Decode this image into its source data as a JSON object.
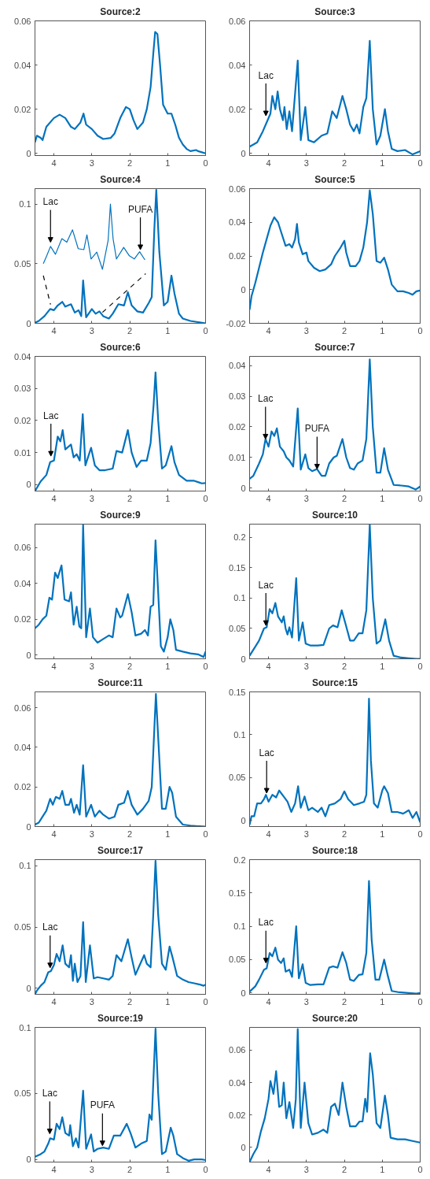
{
  "chart_data": [
    {
      "type": "line",
      "title": "Source:2",
      "xlim": [
        4.5,
        0
      ],
      "xticks": [
        4,
        3,
        2,
        1,
        0
      ],
      "ylim": [
        -0.001,
        0.06
      ],
      "yticks": [
        0,
        0.02,
        0.04,
        0.06
      ],
      "grid": false,
      "series": [
        {
          "color": "#0072bd",
          "x": [
            4.5,
            4.45,
            4.35,
            4.3,
            4.2,
            4.0,
            3.85,
            3.7,
            3.55,
            3.45,
            3.3,
            3.22,
            3.15,
            3.0,
            2.85,
            2.7,
            2.5,
            2.4,
            2.25,
            2.1,
            2.0,
            1.9,
            1.8,
            1.65,
            1.55,
            1.45,
            1.38,
            1.33,
            1.27,
            1.2,
            1.12,
            1.0,
            0.9,
            0.8,
            0.7,
            0.6,
            0.5,
            0.4,
            0.25,
            0.2,
            0
          ],
          "values": [
            0.005,
            0.008,
            0.007,
            0.006,
            0.012,
            0.016,
            0.0175,
            0.016,
            0.012,
            0.011,
            0.014,
            0.018,
            0.013,
            0.011,
            0.008,
            0.0065,
            0.007,
            0.009,
            0.016,
            0.021,
            0.02,
            0.015,
            0.011,
            0.014,
            0.02,
            0.03,
            0.045,
            0.055,
            0.054,
            0.04,
            0.022,
            0.018,
            0.018,
            0.013,
            0.007,
            0.004,
            0.002,
            0.001,
            0.0015,
            0.001,
            0
          ]
        }
      ]
    },
    {
      "type": "line",
      "title": "Source:3",
      "xlim": [
        4.5,
        0
      ],
      "xticks": [
        4,
        3,
        2,
        1,
        0
      ],
      "ylim": [
        -0.001,
        0.06
      ],
      "yticks": [
        0,
        0.02,
        0.04,
        0.06
      ],
      "grid": false,
      "annotations": [
        {
          "text": "Lac",
          "x": 4.07,
          "y": 0.017
        }
      ],
      "series": [
        {
          "color": "#0072bd",
          "x": [
            4.5,
            4.3,
            4.15,
            4.05,
            3.95,
            3.9,
            3.82,
            3.76,
            3.7,
            3.62,
            3.58,
            3.52,
            3.45,
            3.38,
            3.23,
            3.15,
            3.03,
            2.95,
            2.8,
            2.6,
            2.45,
            2.32,
            2.2,
            2.05,
            1.95,
            1.85,
            1.75,
            1.67,
            1.6,
            1.5,
            1.42,
            1.33,
            1.25,
            1.15,
            1.05,
            0.93,
            0.85,
            0.75,
            0.6,
            0.4,
            0.2,
            0
          ],
          "values": [
            0.003,
            0.005,
            0.01,
            0.014,
            0.018,
            0.026,
            0.02,
            0.028,
            0.02,
            0.015,
            0.021,
            0.011,
            0.019,
            0.01,
            0.042,
            0.006,
            0.021,
            0.006,
            0.005,
            0.008,
            0.009,
            0.019,
            0.016,
            0.026,
            0.02,
            0.013,
            0.01,
            0.013,
            0.009,
            0.021,
            0.025,
            0.051,
            0.02,
            0.004,
            0.008,
            0.02,
            0.01,
            0.002,
            0.001,
            0.0015,
            -0.0005,
            0.001
          ]
        }
      ]
    },
    {
      "type": "line",
      "title": "Source:4",
      "xlim": [
        4.5,
        0
      ],
      "xticks": [
        4,
        3,
        2,
        1,
        0
      ],
      "ylim": [
        0,
        0.113
      ],
      "yticks": [
        0,
        0.05,
        0.1
      ],
      "grid": false,
      "annotations": [
        {
          "text": "Lac",
          "x": 4.09,
          "y": 0.068
        },
        {
          "text": "PUFA",
          "x": 1.72,
          "y": 0.0618
        }
      ],
      "series": [
        {
          "color": "#0072bd",
          "x": [
            4.5,
            4.4,
            4.25,
            4.1,
            4.0,
            3.9,
            3.78,
            3.7,
            3.55,
            3.45,
            3.35,
            3.28,
            3.23,
            3.15,
            3.0,
            2.9,
            2.8,
            2.7,
            2.55,
            2.45,
            2.3,
            2.15,
            2.05,
            1.95,
            1.8,
            1.65,
            1.5,
            1.42,
            1.35,
            1.3,
            1.22,
            1.1,
            1.0,
            0.9,
            0.82,
            0.7,
            0.6,
            0.4,
            0.2,
            0
          ],
          "values": [
            0.0005,
            0.002,
            0.006,
            0.012,
            0.011,
            0.015,
            0.018,
            0.014,
            0.016,
            0.009,
            0.011,
            0.006,
            0.036,
            0.005,
            0.012,
            0.008,
            0.01,
            0.006,
            0.004,
            0.008,
            0.016,
            0.015,
            0.026,
            0.015,
            0.01,
            0.009,
            0.017,
            0.022,
            0.08,
            0.112,
            0.06,
            0.015,
            0.018,
            0.04,
            0.025,
            0.008,
            0.004,
            0.002,
            0.001,
            0
          ]
        },
        {
          "color": "#0072bd",
          "x": [
            4.28,
            4.19,
            4.09,
            3.96,
            3.79,
            3.66,
            3.51,
            3.36,
            3.21,
            3.13,
            3.02,
            2.87,
            2.72,
            2.57,
            2.51,
            2.44,
            2.35,
            2.16,
            2.01,
            1.88,
            1.74,
            1.6
          ],
          "values": [
            0.05,
            0.0566,
            0.0645,
            0.0579,
            0.071,
            0.068,
            0.0784,
            0.0626,
            0.0618,
            0.0742,
            0.054,
            0.0597,
            0.0453,
            0.0697,
            0.1,
            0.071,
            0.054,
            0.0637,
            0.0566,
            0.054,
            0.06,
            0.0532
          ]
        },
        {
          "color": "#000000",
          "line_style": "dashed",
          "x": [
            4.28,
            4.09
          ],
          "values": [
            0.04,
            0.0158
          ]
        },
        {
          "color": "#000000",
          "line_style": "dashed",
          "x": [
            2.72,
            1.58
          ],
          "values": [
            0.0092,
            0.0416
          ]
        }
      ]
    },
    {
      "type": "line",
      "title": "Source:5",
      "xlim": [
        4.5,
        0
      ],
      "xticks": [
        4,
        3,
        2,
        1,
        0
      ],
      "ylim": [
        -0.02,
        0.06
      ],
      "yticks": [
        -0.02,
        0,
        0.02,
        0.04,
        0.06
      ],
      "grid": false,
      "series": [
        {
          "color": "#0072bd",
          "x": [
            4.5,
            4.45,
            4.35,
            4.25,
            4.15,
            4.05,
            3.95,
            3.85,
            3.75,
            3.65,
            3.55,
            3.45,
            3.38,
            3.3,
            3.25,
            3.2,
            3.1,
            3.0,
            2.95,
            2.8,
            2.65,
            2.5,
            2.35,
            2.25,
            2.1,
            2.0,
            1.95,
            1.85,
            1.7,
            1.6,
            1.5,
            1.4,
            1.33,
            1.25,
            1.15,
            1.05,
            0.95,
            0.85,
            0.75,
            0.6,
            0.45,
            0.3,
            0.2,
            0.1,
            0
          ],
          "values": [
            -0.012,
            -0.004,
            0.004,
            0.013,
            0.022,
            0.03,
            0.038,
            0.043,
            0.04,
            0.033,
            0.026,
            0.027,
            0.025,
            0.03,
            0.039,
            0.028,
            0.021,
            0.022,
            0.017,
            0.013,
            0.011,
            0.012,
            0.015,
            0.02,
            0.025,
            0.029,
            0.022,
            0.014,
            0.014,
            0.017,
            0.025,
            0.04,
            0.059,
            0.045,
            0.017,
            0.016,
            0.019,
            0.012,
            0.003,
            -0.001,
            -0.001,
            -0.002,
            -0.003,
            -0.001,
            -0.0005
          ]
        }
      ]
    },
    {
      "type": "line",
      "title": "Source:6",
      "xlim": [
        4.5,
        0
      ],
      "xticks": [
        4,
        3,
        2,
        1,
        0
      ],
      "ylim": [
        -0.002,
        0.04
      ],
      "yticks": [
        0,
        0.01,
        0.02,
        0.03,
        0.04
      ],
      "grid": false,
      "annotations": [
        {
          "text": "Lac",
          "x": 4.08,
          "y": 0.0089
        }
      ],
      "series": [
        {
          "color": "#0072bd",
          "x": [
            4.5,
            4.35,
            4.2,
            4.1,
            4.0,
            3.9,
            3.83,
            3.77,
            3.7,
            3.55,
            3.48,
            3.4,
            3.32,
            3.24,
            3.17,
            3.02,
            2.92,
            2.8,
            2.65,
            2.45,
            2.35,
            2.2,
            2.05,
            1.95,
            1.82,
            1.7,
            1.55,
            1.45,
            1.37,
            1.32,
            1.25,
            1.15,
            1.05,
            0.9,
            0.82,
            0.7,
            0.5,
            0.3,
            0.1,
            0
          ],
          "values": [
            -0.002,
            0.001,
            0.003,
            0.007,
            0.0075,
            0.015,
            0.0135,
            0.017,
            0.011,
            0.0125,
            0.0085,
            0.0095,
            0.0075,
            0.022,
            0.006,
            0.0115,
            0.006,
            0.0045,
            0.0045,
            0.005,
            0.0105,
            0.01,
            0.017,
            0.01,
            0.0055,
            0.0075,
            0.0075,
            0.013,
            0.025,
            0.035,
            0.02,
            0.005,
            0.006,
            0.012,
            0.007,
            0.003,
            0.0012,
            0.0012,
            0.0004,
            0.0005
          ]
        }
      ]
    },
    {
      "type": "line",
      "title": "Source:7",
      "xlim": [
        4.5,
        0
      ],
      "xticks": [
        4,
        3,
        2,
        1,
        0
      ],
      "ylim": [
        -0.001,
        0.043
      ],
      "yticks": [
        0,
        0.01,
        0.02,
        0.03,
        0.04
      ],
      "grid": false,
      "annotations": [
        {
          "text": "Lac",
          "x": 4.08,
          "y": 0.016
        },
        {
          "text": "PUFA",
          "x": 2.72,
          "y": 0.0062
        }
      ],
      "series": [
        {
          "color": "#0072bd",
          "x": [
            4.5,
            4.4,
            4.25,
            4.15,
            4.08,
            4.0,
            3.92,
            3.85,
            3.78,
            3.7,
            3.6,
            3.53,
            3.45,
            3.35,
            3.23,
            3.15,
            3.03,
            2.95,
            2.85,
            2.72,
            2.6,
            2.5,
            2.4,
            2.28,
            2.2,
            2.05,
            1.95,
            1.85,
            1.75,
            1.65,
            1.52,
            1.42,
            1.33,
            1.25,
            1.15,
            1.05,
            0.95,
            0.85,
            0.7,
            0.5,
            0.3,
            0.12,
            0
          ],
          "values": [
            0.003,
            0.004,
            0.008,
            0.011,
            0.016,
            0.0135,
            0.0185,
            0.017,
            0.0195,
            0.0135,
            0.012,
            0.01,
            0.009,
            0.007,
            0.026,
            0.006,
            0.011,
            0.0065,
            0.0055,
            0.0062,
            0.004,
            0.004,
            0.008,
            0.01,
            0.0105,
            0.016,
            0.01,
            0.0065,
            0.006,
            0.008,
            0.009,
            0.016,
            0.042,
            0.02,
            0.005,
            0.005,
            0.013,
            0.006,
            0.001,
            0.0008,
            0.0005,
            -0.0005,
            0.0005
          ]
        }
      ]
    },
    {
      "type": "line",
      "title": "Source:9",
      "xlim": [
        4.5,
        0
      ],
      "xticks": [
        4,
        3,
        2,
        1,
        0
      ],
      "ylim": [
        -0.002,
        0.073
      ],
      "yticks": [
        0,
        0.02,
        0.04,
        0.06
      ],
      "grid": false,
      "series": [
        {
          "color": "#0072bd",
          "x": [
            4.5,
            4.4,
            4.3,
            4.2,
            4.12,
            4.05,
            3.97,
            3.9,
            3.8,
            3.72,
            3.6,
            3.55,
            3.48,
            3.4,
            3.33,
            3.28,
            3.23,
            3.15,
            3.05,
            2.97,
            2.85,
            2.7,
            2.55,
            2.45,
            2.35,
            2.25,
            2.2,
            2.05,
            1.95,
            1.85,
            1.7,
            1.6,
            1.52,
            1.45,
            1.38,
            1.32,
            1.25,
            1.18,
            1.1,
            1.0,
            0.93,
            0.85,
            0.78,
            0.6,
            0.4,
            0.2,
            0.05,
            0
          ],
          "values": [
            0.015,
            0.017,
            0.02,
            0.022,
            0.032,
            0.031,
            0.046,
            0.043,
            0.05,
            0.031,
            0.03,
            0.035,
            0.017,
            0.027,
            0.016,
            0.015,
            0.0725,
            0.01,
            0.026,
            0.01,
            0.007,
            0.009,
            0.011,
            0.01,
            0.026,
            0.021,
            0.022,
            0.034,
            0.024,
            0.011,
            0.012,
            0.014,
            0.011,
            0.027,
            0.028,
            0.064,
            0.035,
            0.005,
            0.002,
            0.01,
            0.02,
            0.014,
            0.003,
            0.002,
            0.001,
            0.0005,
            -0.001,
            0.002
          ]
        }
      ]
    },
    {
      "type": "line",
      "title": "Source:10",
      "xlim": [
        4.5,
        0
      ],
      "xticks": [
        4,
        3,
        2,
        1,
        0
      ],
      "ylim": [
        0,
        0.222
      ],
      "yticks": [
        0,
        0.05,
        0.1,
        0.15,
        0.2
      ],
      "grid": false,
      "annotations": [
        {
          "text": "Lac",
          "x": 4.07,
          "y": 0.055
        }
      ],
      "series": [
        {
          "color": "#0072bd",
          "x": [
            4.5,
            4.35,
            4.25,
            4.12,
            4.05,
            3.97,
            3.9,
            3.82,
            3.75,
            3.65,
            3.6,
            3.55,
            3.5,
            3.45,
            3.38,
            3.27,
            3.2,
            3.1,
            3.02,
            2.9,
            2.7,
            2.55,
            2.4,
            2.3,
            2.18,
            2.07,
            1.98,
            1.85,
            1.75,
            1.62,
            1.52,
            1.42,
            1.33,
            1.25,
            1.15,
            1.05,
            0.92,
            0.82,
            0.7,
            0.5,
            0.3,
            0.1,
            0
          ],
          "values": [
            0.005,
            0.02,
            0.03,
            0.05,
            0.052,
            0.082,
            0.075,
            0.092,
            0.07,
            0.06,
            0.07,
            0.05,
            0.04,
            0.052,
            0.035,
            0.133,
            0.03,
            0.06,
            0.025,
            0.022,
            0.022,
            0.023,
            0.05,
            0.055,
            0.052,
            0.08,
            0.06,
            0.03,
            0.03,
            0.042,
            0.042,
            0.08,
            0.221,
            0.1,
            0.025,
            0.03,
            0.065,
            0.03,
            0.005,
            0.002,
            0.001,
            0,
            0
          ]
        }
      ]
    },
    {
      "type": "line",
      "title": "Source:11",
      "xlim": [
        4.5,
        0
      ],
      "xticks": [
        4,
        3,
        2,
        1,
        0
      ],
      "ylim": [
        0,
        0.068
      ],
      "yticks": [
        0,
        0.02,
        0.04,
        0.06
      ],
      "grid": false,
      "series": [
        {
          "color": "#0072bd",
          "x": [
            4.5,
            4.4,
            4.3,
            4.2,
            4.1,
            4.03,
            3.95,
            3.85,
            3.78,
            3.7,
            3.6,
            3.55,
            3.47,
            3.4,
            3.32,
            3.23,
            3.15,
            3.02,
            2.92,
            2.8,
            2.7,
            2.55,
            2.4,
            2.3,
            2.15,
            2.05,
            1.95,
            1.8,
            1.65,
            1.5,
            1.42,
            1.35,
            1.31,
            1.25,
            1.15,
            1.05,
            0.95,
            0.88,
            0.78,
            0.6,
            0.4,
            0.2,
            0
          ],
          "values": [
            0.001,
            0.002,
            0.005,
            0.008,
            0.014,
            0.011,
            0.015,
            0.014,
            0.018,
            0.011,
            0.011,
            0.014,
            0.007,
            0.011,
            0.006,
            0.031,
            0.005,
            0.011,
            0.005,
            0.008,
            0.006,
            0.004,
            0.005,
            0.011,
            0.012,
            0.018,
            0.011,
            0.006,
            0.009,
            0.013,
            0.02,
            0.05,
            0.067,
            0.045,
            0.009,
            0.009,
            0.02,
            0.017,
            0.005,
            0.001,
            0.0005,
            0.0002,
            0
          ]
        }
      ]
    },
    {
      "type": "line",
      "title": "Source:15",
      "xlim": [
        4.5,
        0
      ],
      "xticks": [
        4,
        3,
        2,
        1,
        0
      ],
      "ylim": [
        -0.007,
        0.15
      ],
      "yticks": [
        0,
        0.05,
        0.1,
        0.15
      ],
      "grid": false,
      "annotations": [
        {
          "text": "Lac",
          "x": 4.05,
          "y": 0.032
        }
      ],
      "series": [
        {
          "color": "#0072bd",
          "x": [
            4.5,
            4.45,
            4.38,
            4.3,
            4.2,
            4.12,
            4.07,
            4.0,
            3.9,
            3.8,
            3.72,
            3.6,
            3.5,
            3.4,
            3.3,
            3.22,
            3.15,
            3.05,
            2.95,
            2.85,
            2.7,
            2.6,
            2.5,
            2.4,
            2.25,
            2.1,
            2.0,
            1.9,
            1.75,
            1.6,
            1.48,
            1.42,
            1.38,
            1.35,
            1.3,
            1.22,
            1.12,
            1.0,
            0.95,
            0.85,
            0.75,
            0.6,
            0.45,
            0.3,
            0.2,
            0.1,
            0
          ],
          "values": [
            -0.005,
            0.005,
            0.005,
            0.02,
            0.02,
            0.025,
            0.03,
            0.022,
            0.03,
            0.027,
            0.035,
            0.028,
            0.022,
            0.01,
            0.02,
            0.04,
            0.015,
            0.028,
            0.012,
            0.015,
            0.01,
            0.015,
            0.005,
            0.018,
            0.02,
            0.025,
            0.034,
            0.025,
            0.018,
            0.02,
            0.022,
            0.03,
            0.09,
            0.142,
            0.07,
            0.02,
            0.015,
            0.035,
            0.04,
            0.032,
            0.01,
            0.01,
            0.008,
            0.012,
            0.003,
            0.01,
            -0.002
          ]
        }
      ]
    },
    {
      "type": "line",
      "title": "Source:17",
      "xlim": [
        4.5,
        0
      ],
      "xticks": [
        4,
        3,
        2,
        1,
        0
      ],
      "ylim": [
        -0.005,
        0.105
      ],
      "yticks": [
        0,
        0.05,
        0.1
      ],
      "grid": false,
      "annotations": [
        {
          "text": "Lac",
          "x": 4.1,
          "y": 0.0167
        }
      ],
      "series": [
        {
          "color": "#0072bd",
          "x": [
            4.5,
            4.45,
            4.35,
            4.25,
            4.15,
            4.08,
            4.0,
            3.93,
            3.85,
            3.77,
            3.7,
            3.6,
            3.55,
            3.5,
            3.45,
            3.38,
            3.3,
            3.23,
            3.16,
            3.05,
            2.95,
            2.85,
            2.7,
            2.55,
            2.45,
            2.35,
            2.22,
            2.05,
            1.95,
            1.85,
            1.75,
            1.62,
            1.55,
            1.45,
            1.38,
            1.32,
            1.25,
            1.15,
            1.05,
            0.95,
            0.87,
            0.75,
            0.6,
            0.45,
            0.3,
            0.15,
            0.05,
            0
          ],
          "values": [
            -0.005,
            -0.002,
            0.002,
            0.005,
            0.013,
            0.014,
            0.019,
            0.028,
            0.022,
            0.035,
            0.02,
            0.017,
            0.027,
            0.006,
            0.02,
            0.005,
            0.01,
            0.054,
            0.005,
            0.035,
            0.008,
            0.009,
            0.008,
            0.007,
            0.01,
            0.027,
            0.022,
            0.04,
            0.025,
            0.011,
            0.018,
            0.027,
            0.02,
            0.017,
            0.06,
            0.104,
            0.06,
            0.02,
            0.015,
            0.034,
            0.025,
            0.01,
            0.007,
            0.005,
            0.004,
            0.003,
            0.002,
            0.003
          ]
        }
      ]
    },
    {
      "type": "line",
      "title": "Source:18",
      "xlim": [
        4.5,
        0
      ],
      "xticks": [
        4,
        3,
        2,
        1,
        0
      ],
      "ylim": [
        -0.002,
        0.2
      ],
      "yticks": [
        0,
        0.05,
        0.1,
        0.15,
        0.2
      ],
      "grid": false,
      "annotations": [
        {
          "text": "Lac",
          "x": 4.07,
          "y": 0.045
        }
      ],
      "series": [
        {
          "color": "#0072bd",
          "x": [
            4.5,
            4.35,
            4.25,
            4.12,
            4.05,
            3.97,
            3.9,
            3.82,
            3.75,
            3.67,
            3.6,
            3.55,
            3.45,
            3.38,
            3.27,
            3.2,
            3.1,
            3.02,
            2.9,
            2.7,
            2.55,
            2.4,
            2.3,
            2.18,
            2.05,
            1.95,
            1.85,
            1.75,
            1.62,
            1.52,
            1.42,
            1.35,
            1.28,
            1.18,
            1.08,
            0.95,
            0.85,
            0.75,
            0.55,
            0.3,
            0.1,
            0
          ],
          "values": [
            0.002,
            0.01,
            0.02,
            0.035,
            0.037,
            0.06,
            0.055,
            0.068,
            0.05,
            0.045,
            0.052,
            0.032,
            0.035,
            0.024,
            0.1,
            0.022,
            0.043,
            0.015,
            0.012,
            0.013,
            0.013,
            0.038,
            0.04,
            0.038,
            0.061,
            0.045,
            0.02,
            0.018,
            0.027,
            0.028,
            0.06,
            0.168,
            0.08,
            0.02,
            0.02,
            0.05,
            0.025,
            0.003,
            0.001,
            0,
            -0.001,
            0
          ]
        }
      ]
    },
    {
      "type": "line",
      "title": "Source:19",
      "xlim": [
        4.5,
        0
      ],
      "xticks": [
        4,
        3,
        2,
        1,
        0
      ],
      "ylim": [
        -0.002,
        0.1
      ],
      "yticks": [
        0,
        0.05,
        0.1
      ],
      "grid": false,
      "annotations": [
        {
          "text": "Lac",
          "x": 4.11,
          "y": 0.0194
        },
        {
          "text": "PUFA",
          "x": 2.72,
          "y": 0.0104
        }
      ],
      "series": [
        {
          "color": "#0072bd",
          "x": [
            4.5,
            4.35,
            4.25,
            4.15,
            4.1,
            4.0,
            3.93,
            3.85,
            3.78,
            3.7,
            3.6,
            3.57,
            3.5,
            3.42,
            3.35,
            3.23,
            3.15,
            3.02,
            2.95,
            2.85,
            2.7,
            2.55,
            2.42,
            2.25,
            2.08,
            1.98,
            1.85,
            1.7,
            1.55,
            1.48,
            1.42,
            1.32,
            1.25,
            1.15,
            1.05,
            0.92,
            0.85,
            0.75,
            0.6,
            0.45,
            0.3,
            0.1,
            0
          ],
          "values": [
            0.002,
            0.004,
            0.006,
            0.012,
            0.016,
            0.015,
            0.027,
            0.023,
            0.032,
            0.02,
            0.018,
            0.026,
            0.01,
            0.016,
            0.009,
            0.052,
            0.008,
            0.019,
            0.006,
            0.008,
            0.009,
            0.008,
            0.018,
            0.018,
            0.027,
            0.02,
            0.009,
            0.012,
            0.014,
            0.034,
            0.03,
            0.099,
            0.05,
            0.004,
            0.006,
            0.024,
            0.018,
            0.004,
            0.001,
            -0.001,
            0,
            0,
            -0.0005
          ]
        }
      ]
    },
    {
      "type": "line",
      "title": "Source:20",
      "xlim": [
        4.5,
        0
      ],
      "xticks": [
        4,
        3,
        2,
        1,
        0
      ],
      "ylim": [
        -0.009,
        0.074
      ],
      "yticks": [
        0,
        0.02,
        0.04,
        0.06
      ],
      "grid": false,
      "series": [
        {
          "color": "#0072bd",
          "x": [
            4.5,
            4.4,
            4.3,
            4.2,
            4.1,
            4.0,
            3.95,
            3.87,
            3.8,
            3.72,
            3.65,
            3.6,
            3.53,
            3.45,
            3.35,
            3.28,
            3.23,
            3.15,
            3.05,
            2.95,
            2.85,
            2.7,
            2.55,
            2.45,
            2.35,
            2.25,
            2.15,
            2.05,
            1.95,
            1.85,
            1.7,
            1.6,
            1.52,
            1.45,
            1.4,
            1.32,
            1.25,
            1.15,
            1.05,
            0.93,
            0.85,
            0.78,
            0.6,
            0.4,
            0.2,
            0
          ],
          "values": [
            -0.009,
            -0.004,
            0,
            0.01,
            0.018,
            0.03,
            0.041,
            0.033,
            0.047,
            0.025,
            0.026,
            0.04,
            0.018,
            0.028,
            0.012,
            0.03,
            0.073,
            0.012,
            0.04,
            0.015,
            0.008,
            0.009,
            0.011,
            0.009,
            0.025,
            0.027,
            0.02,
            0.04,
            0.025,
            0.013,
            0.013,
            0.016,
            0.016,
            0.03,
            0.022,
            0.058,
            0.045,
            0.015,
            0.012,
            0.032,
            0.02,
            0.006,
            0.005,
            0.005,
            0.004,
            0.003
          ]
        }
      ]
    }
  ]
}
